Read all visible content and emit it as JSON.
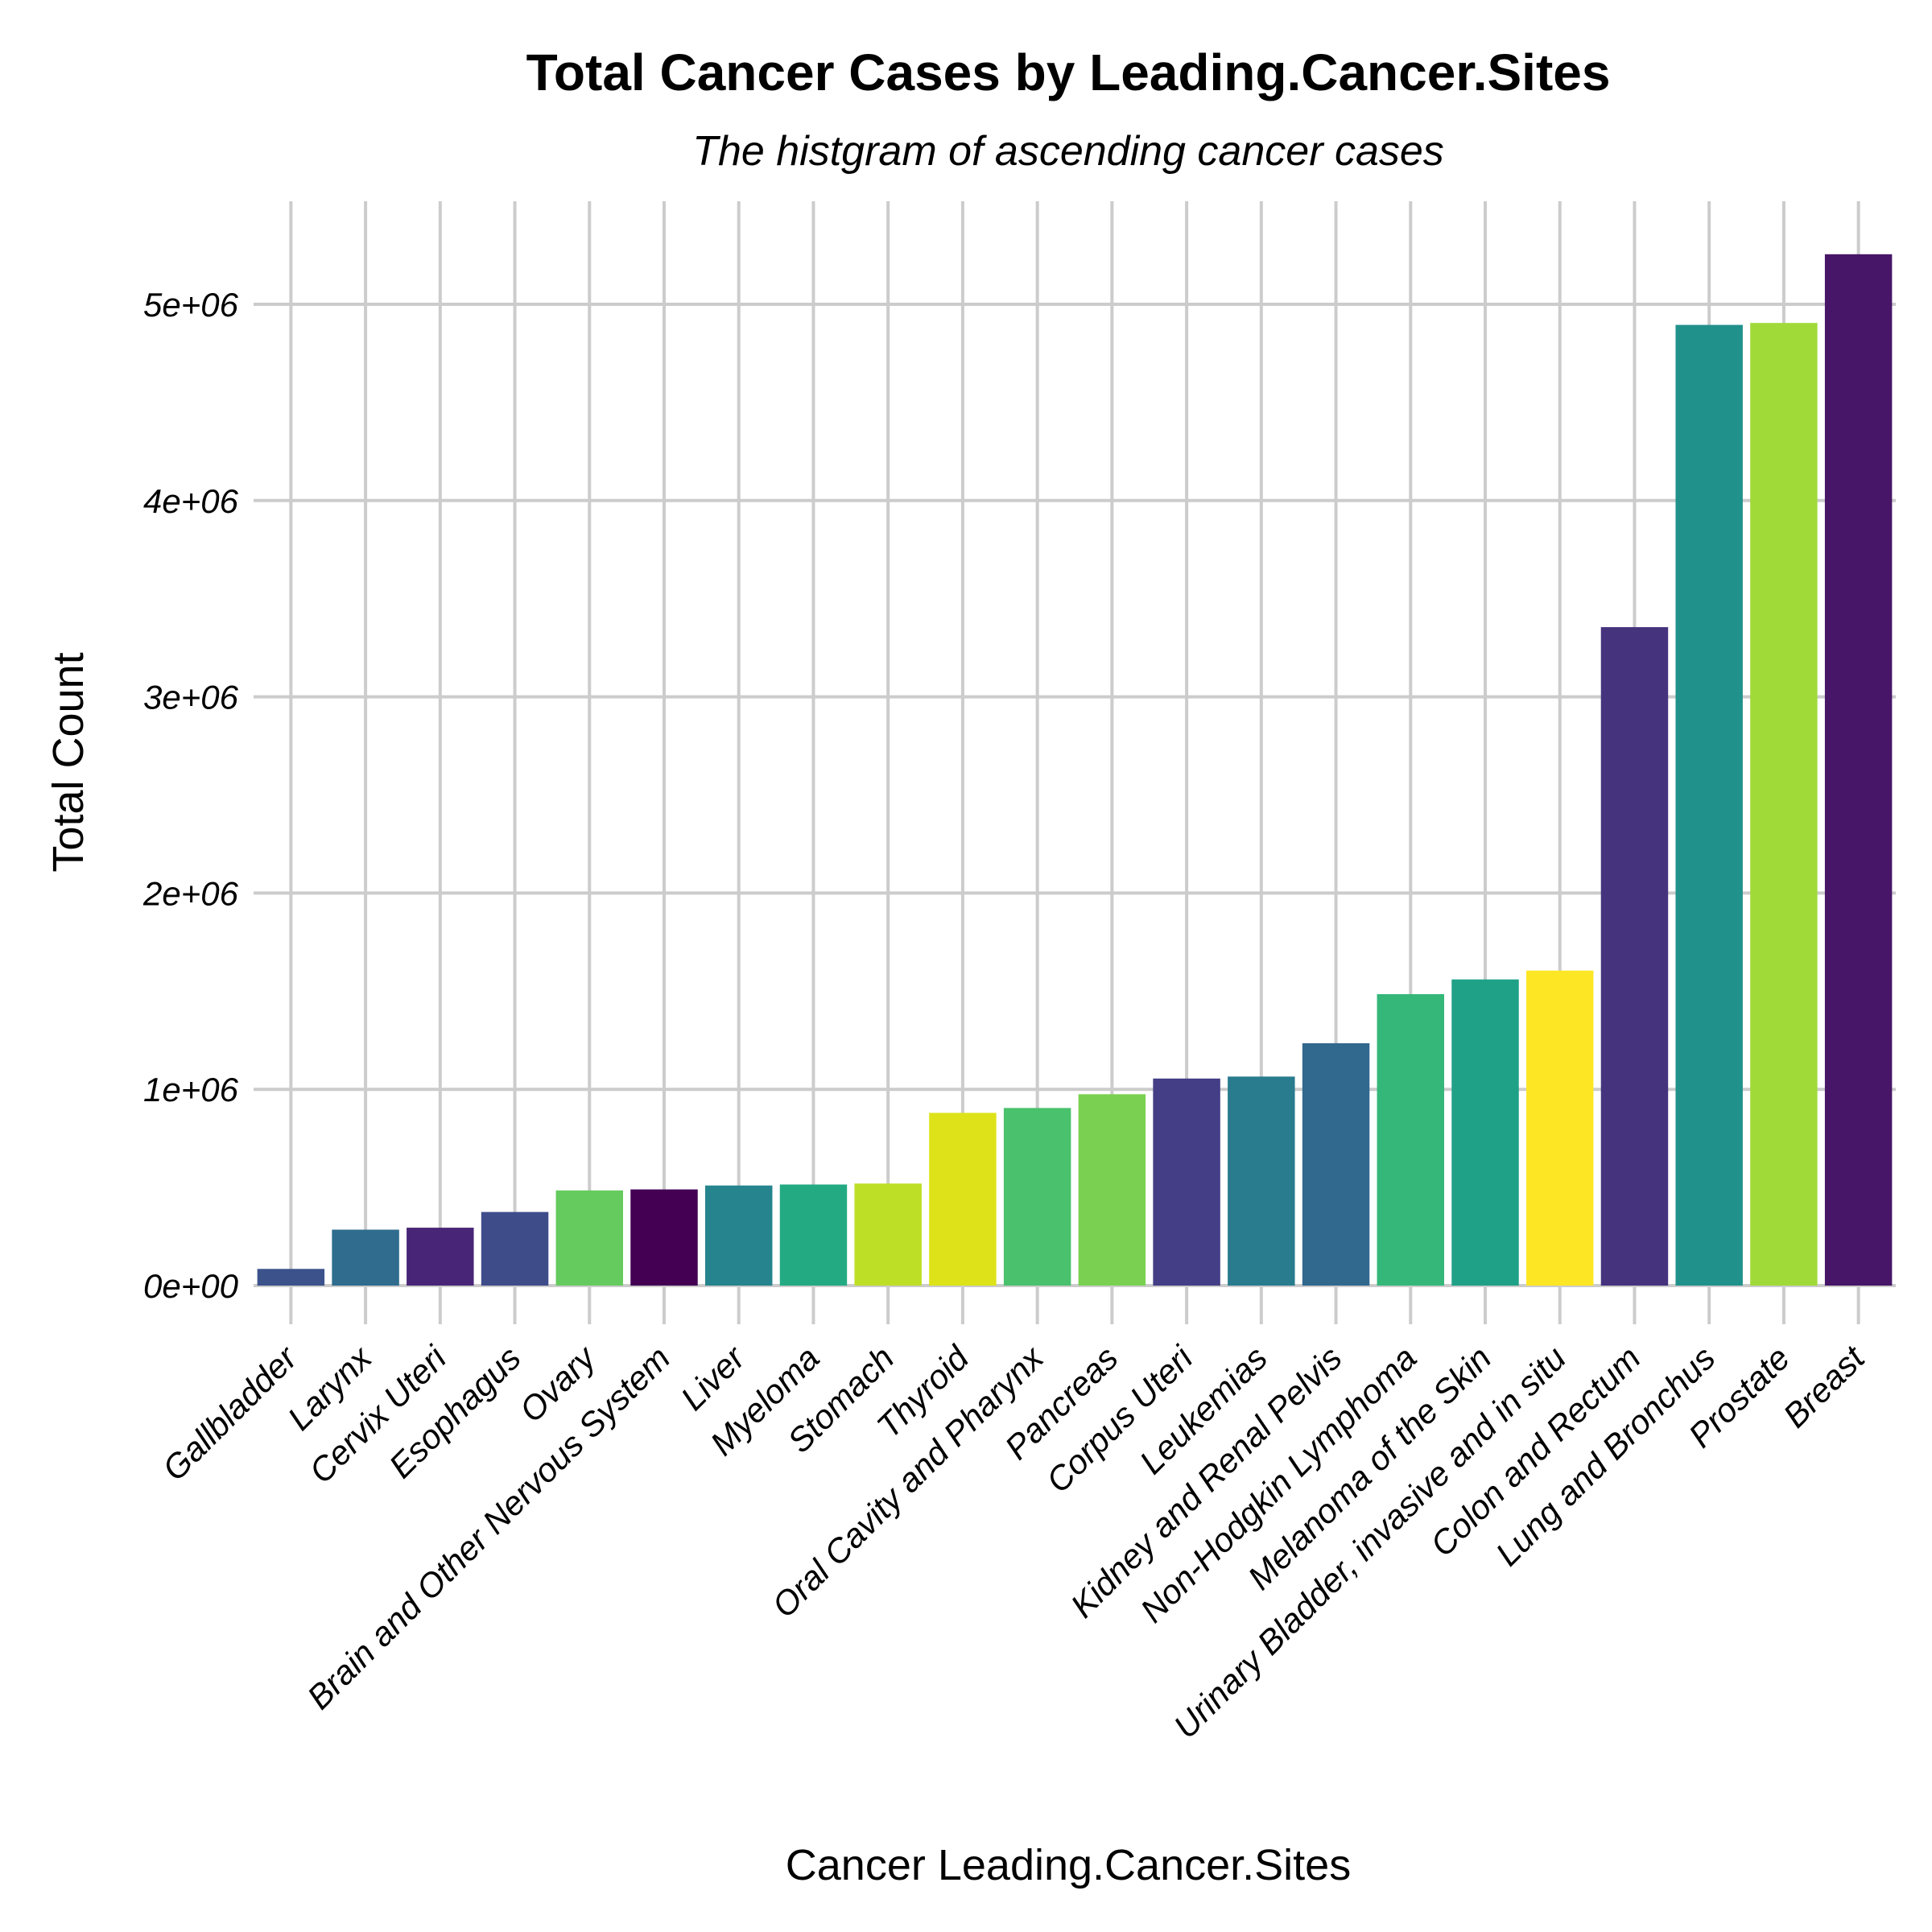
{
  "chart_data": {
    "type": "bar",
    "title": "Total Cancer Cases by Leading.Cancer.Sites",
    "subtitle": "The histgram of ascending cancer cases",
    "xlabel": "Cancer Leading.Cancer.Sites",
    "ylabel": "Total Count",
    "ylim": [
      -250000,
      5500000
    ],
    "yticks": [
      0,
      1000000,
      2000000,
      3000000,
      4000000,
      5000000
    ],
    "ytick_labels": [
      "0e+00",
      "1e+06",
      "2e+06",
      "3e+06",
      "4e+06",
      "5e+06"
    ],
    "grid": true,
    "legend": "none",
    "categories": [
      "Gallbladder",
      "Larynx",
      "Cervix Uteri",
      "Esophagus",
      "Ovary",
      "Brain and Other Nervous System",
      "Liver",
      "Myeloma",
      "Stomach",
      "Thyroid",
      "Oral Cavity and Pharynx",
      "Pancreas",
      "Corpus Uteri",
      "Leukemias",
      "Kidney and Renal Pelvis",
      "Non-Hodgkin Lymphoma",
      "Melanoma of the Skin",
      "Urinary Bladder, invasive and in situ",
      "Colon and Rectum",
      "Lung and Bronchus",
      "Prostate",
      "Breast"
    ],
    "values": [
      85000,
      285000,
      295000,
      375000,
      485000,
      490000,
      510000,
      515000,
      520000,
      880000,
      905000,
      975000,
      1055000,
      1065000,
      1235000,
      1485000,
      1560000,
      1605000,
      3355000,
      4895000,
      4905000,
      5255000
    ],
    "colors": [
      "#3b528b",
      "#2f6c8e",
      "#482576",
      "#3e4c8a",
      "#65cb5e",
      "#440154",
      "#25848e",
      "#24aa83",
      "#bddf26",
      "#dde318",
      "#4ac16d",
      "#7ad151",
      "#433e85",
      "#287c8e",
      "#31688e",
      "#35b779",
      "#1fa187",
      "#fde725",
      "#46337e",
      "#21918c",
      "#a0da39",
      "#481668"
    ]
  }
}
